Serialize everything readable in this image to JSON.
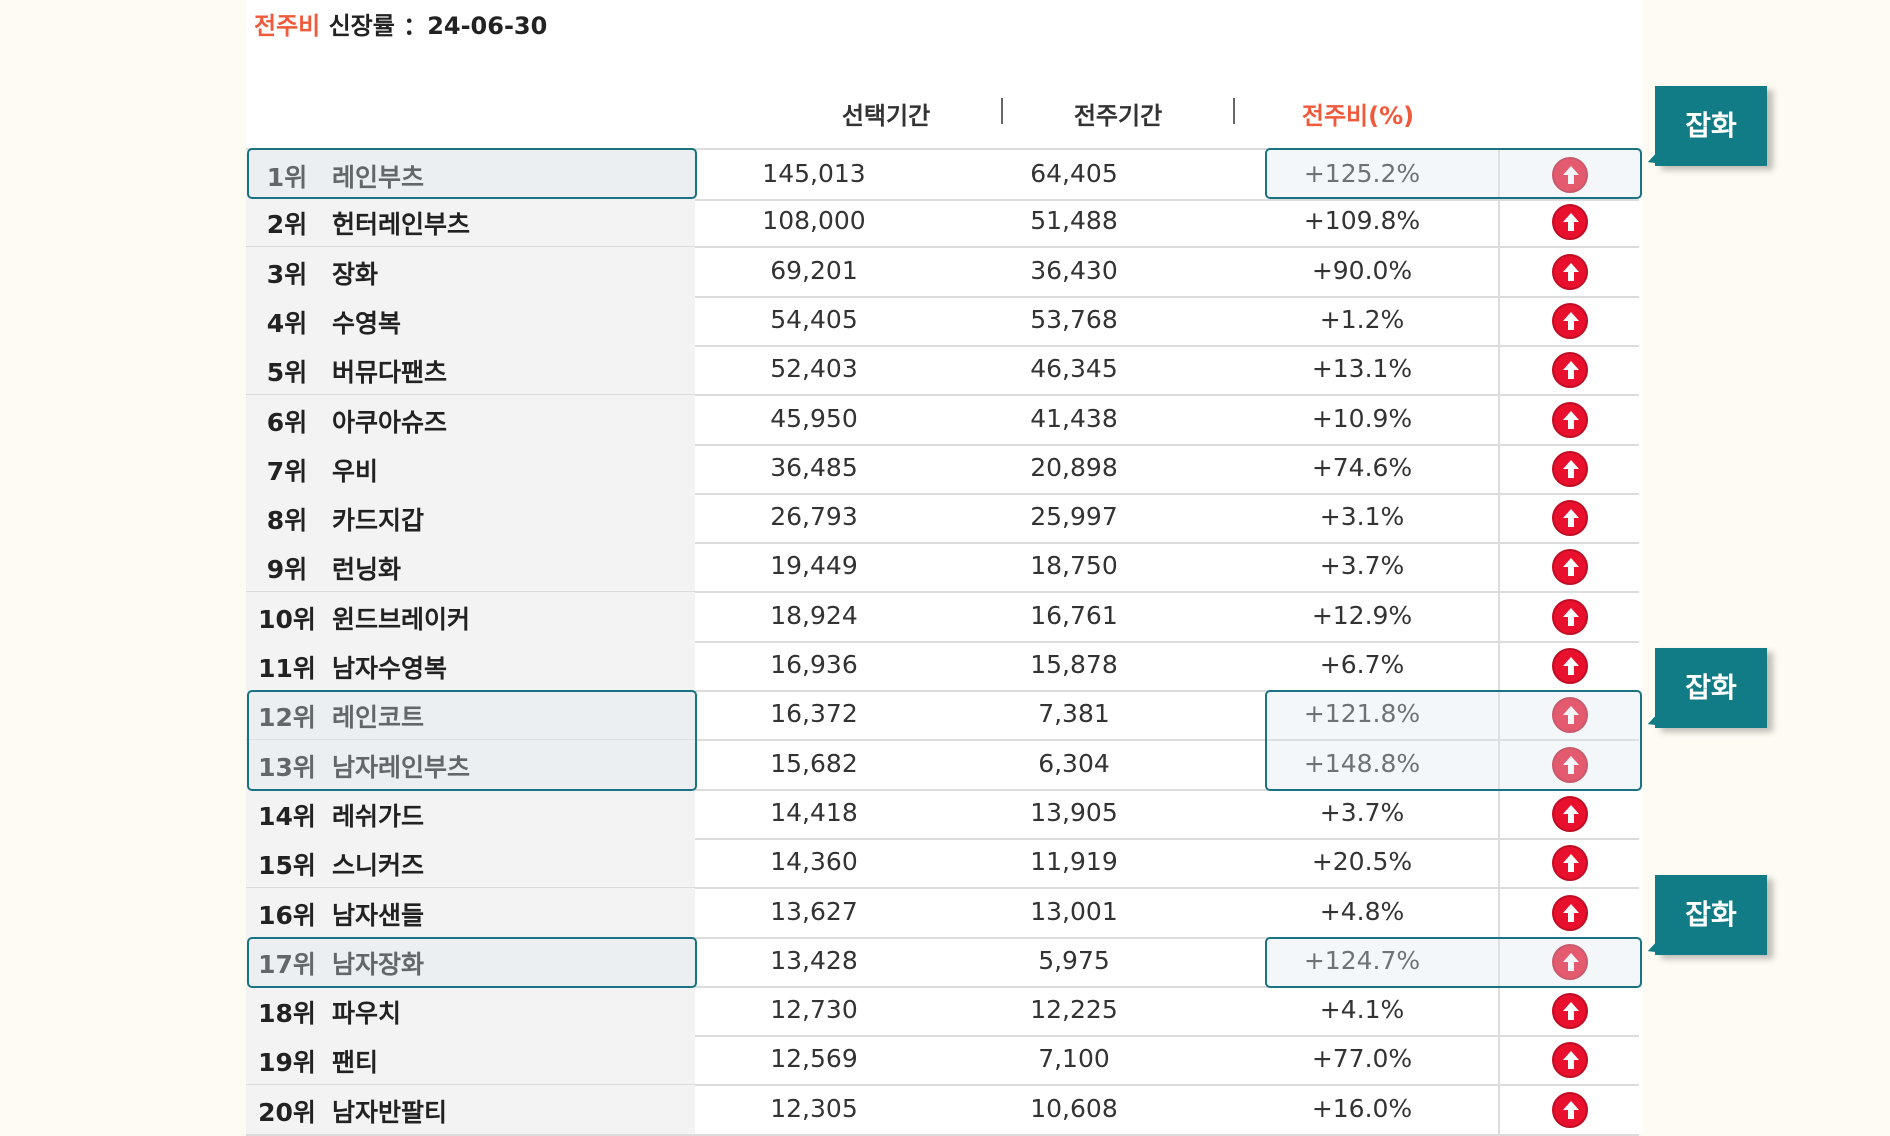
{
  "title": {
    "accent": "전주비",
    "rest": " 신장률 ：24-06-30"
  },
  "headers": {
    "selected": "선택기간",
    "previous": "전주기간",
    "ratio": "전주비(%)"
  },
  "callout_label": "잡화",
  "colors": {
    "accent": "#ef5a3c",
    "highlight": "#1a7382",
    "callout": "#117c85",
    "up_icon": "#e8102c"
  },
  "rows": [
    {
      "rank": "1위",
      "item": "레인부츠",
      "selected": "145,013",
      "previous": "64,405",
      "ratio": "+125.2%",
      "trend_icon": "arrow-up-circle-icon"
    },
    {
      "rank": "2위",
      "item": "헌터레인부츠",
      "selected": "108,000",
      "previous": "51,488",
      "ratio": "+109.8%",
      "trend_icon": "arrow-up-circle-icon"
    },
    {
      "rank": "3위",
      "item": "장화",
      "selected": "69,201",
      "previous": "36,430",
      "ratio": "+90.0%",
      "trend_icon": "arrow-up-circle-icon"
    },
    {
      "rank": "4위",
      "item": "수영복",
      "selected": "54,405",
      "previous": "53,768",
      "ratio": "+1.2%",
      "trend_icon": "arrow-up-circle-icon"
    },
    {
      "rank": "5위",
      "item": "버뮤다팬츠",
      "selected": "52,403",
      "previous": "46,345",
      "ratio": "+13.1%",
      "trend_icon": "arrow-up-circle-icon"
    },
    {
      "rank": "6위",
      "item": "아쿠아슈즈",
      "selected": "45,950",
      "previous": "41,438",
      "ratio": "+10.9%",
      "trend_icon": "arrow-up-circle-icon"
    },
    {
      "rank": "7위",
      "item": "우비",
      "selected": "36,485",
      "previous": "20,898",
      "ratio": "+74.6%",
      "trend_icon": "arrow-up-circle-icon"
    },
    {
      "rank": "8위",
      "item": "카드지갑",
      "selected": "26,793",
      "previous": "25,997",
      "ratio": "+3.1%",
      "trend_icon": "arrow-up-circle-icon"
    },
    {
      "rank": "9위",
      "item": "런닝화",
      "selected": "19,449",
      "previous": "18,750",
      "ratio": "+3.7%",
      "trend_icon": "arrow-up-circle-icon"
    },
    {
      "rank": "10위",
      "item": "윈드브레이커",
      "selected": "18,924",
      "previous": "16,761",
      "ratio": "+12.9%",
      "trend_icon": "arrow-up-circle-icon"
    },
    {
      "rank": "11위",
      "item": "남자수영복",
      "selected": "16,936",
      "previous": "15,878",
      "ratio": "+6.7%",
      "trend_icon": "arrow-up-circle-icon"
    },
    {
      "rank": "12위",
      "item": "레인코트",
      "selected": "16,372",
      "previous": "7,381",
      "ratio": "+121.8%",
      "trend_icon": "arrow-up-circle-icon"
    },
    {
      "rank": "13위",
      "item": "남자레인부츠",
      "selected": "15,682",
      "previous": "6,304",
      "ratio": "+148.8%",
      "trend_icon": "arrow-up-circle-icon"
    },
    {
      "rank": "14위",
      "item": "레쉬가드",
      "selected": "14,418",
      "previous": "13,905",
      "ratio": "+3.7%",
      "trend_icon": "arrow-up-circle-icon"
    },
    {
      "rank": "15위",
      "item": "스니커즈",
      "selected": "14,360",
      "previous": "11,919",
      "ratio": "+20.5%",
      "trend_icon": "arrow-up-circle-icon"
    },
    {
      "rank": "16위",
      "item": "남자샌들",
      "selected": "13,627",
      "previous": "13,001",
      "ratio": "+4.8%",
      "trend_icon": "arrow-up-circle-icon"
    },
    {
      "rank": "17위",
      "item": "남자장화",
      "selected": "13,428",
      "previous": "5,975",
      "ratio": "+124.7%",
      "trend_icon": "arrow-up-circle-icon"
    },
    {
      "rank": "18위",
      "item": "파우치",
      "selected": "12,730",
      "previous": "12,225",
      "ratio": "+4.1%",
      "trend_icon": "arrow-up-circle-icon"
    },
    {
      "rank": "19위",
      "item": "팬티",
      "selected": "12,569",
      "previous": "7,100",
      "ratio": "+77.0%",
      "trend_icon": "arrow-up-circle-icon"
    },
    {
      "rank": "20위",
      "item": "남자반팔티",
      "selected": "12,305",
      "previous": "10,608",
      "ratio": "+16.0%",
      "trend_icon": "arrow-up-circle-icon"
    }
  ],
  "highlight_groups": [
    {
      "ranks": [
        "1위"
      ]
    },
    {
      "ranks": [
        "12위",
        "13위"
      ]
    },
    {
      "ranks": [
        "17위"
      ]
    }
  ]
}
